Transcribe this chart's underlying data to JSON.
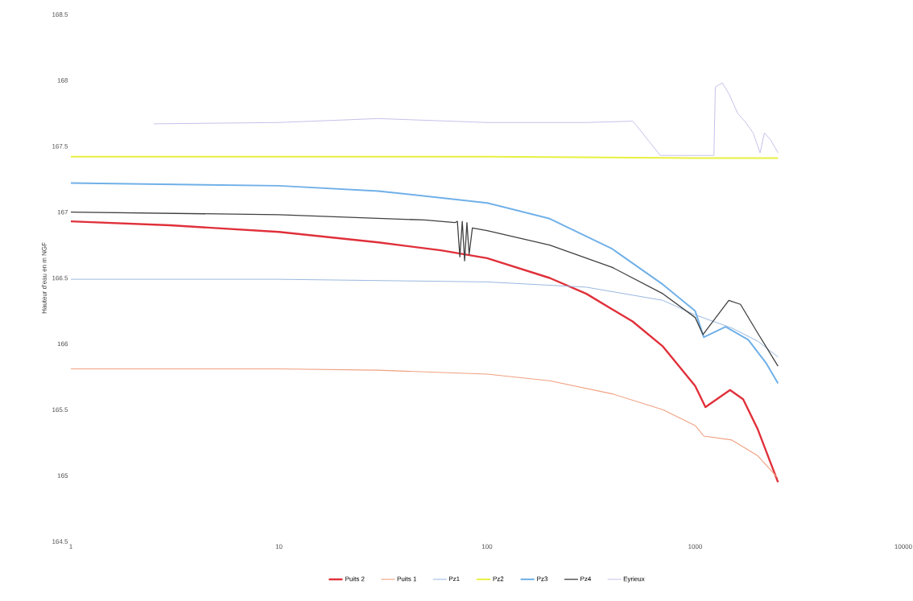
{
  "chart_data": {
    "type": "line",
    "ylabel": "Hauteur d'eau en m NGF",
    "log": "x",
    "xlim": [
      1,
      10000
    ],
    "xticks": [
      1,
      10,
      100,
      1000,
      10000
    ],
    "ylim": [
      164.5,
      168.5
    ],
    "yticks": [
      164.5,
      165,
      165.5,
      166,
      166.5,
      167,
      167.5,
      168,
      168.5
    ],
    "legend": "bottom",
    "series": [
      {
        "name": "Puits 2",
        "color": "#e0303a",
        "x": [
          1,
          3,
          10,
          30,
          60,
          100,
          200,
          300,
          500,
          700,
          1000,
          1120,
          1470,
          1700,
          2000,
          2500
        ],
        "values": [
          166.93,
          166.9,
          166.85,
          166.77,
          166.71,
          166.65,
          166.5,
          166.38,
          166.17,
          165.98,
          165.68,
          165.52,
          165.65,
          165.58,
          165.35,
          164.95
        ]
      },
      {
        "name": "Puits 1",
        "color": "#f0a080",
        "x": [
          1,
          10,
          30,
          100,
          200,
          400,
          700,
          1000,
          1100,
          1500,
          2000,
          2500
        ],
        "values": [
          165.81,
          165.81,
          165.8,
          165.77,
          165.72,
          165.62,
          165.5,
          165.38,
          165.3,
          165.27,
          165.15,
          164.98
        ]
      },
      {
        "name": "Pz1",
        "color": "#9ab8e0",
        "x": [
          1,
          10,
          100,
          300,
          700,
          1000,
          1500,
          2000,
          2500
        ],
        "values": [
          166.49,
          166.49,
          166.47,
          166.43,
          166.33,
          166.22,
          166.12,
          166.02,
          165.9
        ]
      },
      {
        "name": "Pz2",
        "color": "#e8f040",
        "x": [
          1,
          100,
          1000,
          2500
        ],
        "values": [
          167.42,
          167.42,
          167.41,
          167.41
        ]
      },
      {
        "name": "Pz3",
        "color": "#70b0e8",
        "x": [
          1,
          10,
          30,
          100,
          200,
          400,
          700,
          1000,
          1100,
          1400,
          1800,
          2200,
          2500
        ],
        "values": [
          167.22,
          167.2,
          167.16,
          167.07,
          166.95,
          166.72,
          166.45,
          166.25,
          166.05,
          166.13,
          166.03,
          165.85,
          165.7
        ]
      },
      {
        "name": "Pz4",
        "color": "#404040",
        "x": [
          1,
          10,
          50,
          70,
          72,
          74,
          76,
          78,
          80,
          82,
          85,
          100,
          200,
          400,
          700,
          1000,
          1090,
          1450,
          1650,
          2000,
          2500
        ],
        "values": [
          167.0,
          166.98,
          166.94,
          166.92,
          166.93,
          166.66,
          166.93,
          166.63,
          166.92,
          166.68,
          166.88,
          166.86,
          166.75,
          166.58,
          166.38,
          166.2,
          166.07,
          166.33,
          166.3,
          166.08,
          165.83
        ]
      },
      {
        "name": "Eyrieux",
        "color": "#c0b8e8",
        "x": [
          2.5,
          10,
          30,
          100,
          300,
          500,
          520,
          680,
          1230,
          1250,
          1350,
          1450,
          1600,
          1750,
          1900,
          2050,
          2150,
          2300,
          2500
        ],
        "values": [
          167.67,
          167.68,
          167.71,
          167.68,
          167.68,
          167.69,
          167.66,
          167.43,
          167.43,
          167.95,
          167.98,
          167.9,
          167.75,
          167.68,
          167.6,
          167.45,
          167.6,
          167.55,
          167.45
        ]
      }
    ]
  }
}
